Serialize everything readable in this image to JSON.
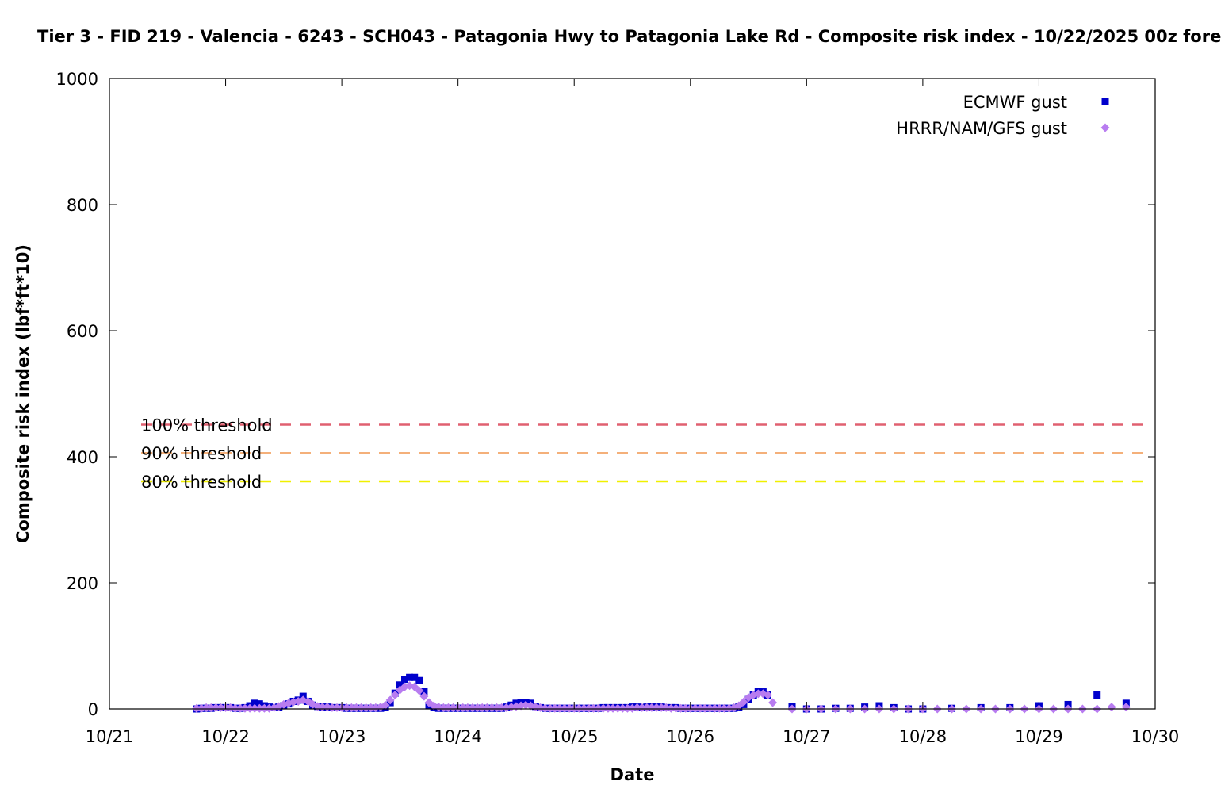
{
  "chart_data": {
    "type": "scatter",
    "title": "Tier 3 - FID 219 - Valencia - 6243 - SCH043 - Patagonia Hwy to Patagonia Lake Rd - Composite risk index - 10/22/2025 00z fore",
    "xlabel": "Date",
    "ylabel": "Composite risk index (lbf*ft*10)",
    "xlim": [
      "10/21",
      "10/30"
    ],
    "ylim": [
      0,
      1000
    ],
    "x_ticks": [
      "10/21",
      "10/22",
      "10/23",
      "10/24",
      "10/25",
      "10/26",
      "10/27",
      "10/28",
      "10/29",
      "10/30"
    ],
    "y_ticks": [
      "0",
      "200",
      "400",
      "600",
      "800",
      "1000"
    ],
    "legend_position": "top-right",
    "grid": false,
    "thresholds": [
      {
        "label": "100% threshold",
        "value": 451,
        "color": "#e06070"
      },
      {
        "label": "90% threshold",
        "value": 406,
        "color": "#f4b07a"
      },
      {
        "label": "80% threshold",
        "value": 361,
        "color": "#f0f000"
      }
    ],
    "series": [
      {
        "name": "ECMWF gust",
        "color": "#0000cc",
        "marker": "square",
        "points": [
          [
            "10/21 18z",
            0
          ],
          [
            "10/21 19z",
            1
          ],
          [
            "10/21 20z",
            1
          ],
          [
            "10/21 21z",
            1
          ],
          [
            "10/21 22z",
            2
          ],
          [
            "10/21 23z",
            2
          ],
          [
            "10/22 00z",
            2
          ],
          [
            "10/22 01z",
            2
          ],
          [
            "10/22 02z",
            1
          ],
          [
            "10/22 03z",
            1
          ],
          [
            "10/22 04z",
            2
          ],
          [
            "10/22 05z",
            5
          ],
          [
            "10/22 06z",
            9
          ],
          [
            "10/22 07z",
            8
          ],
          [
            "10/22 08z",
            5
          ],
          [
            "10/22 09z",
            3
          ],
          [
            "10/22 10z",
            2
          ],
          [
            "10/22 11z",
            3
          ],
          [
            "10/22 12z",
            5
          ],
          [
            "10/22 13z",
            8
          ],
          [
            "10/22 14z",
            12
          ],
          [
            "10/22 15z",
            14
          ],
          [
            "10/22 16z",
            20
          ],
          [
            "10/22 17z",
            12
          ],
          [
            "10/22 18z",
            6
          ],
          [
            "10/22 19z",
            4
          ],
          [
            "10/22 20z",
            3
          ],
          [
            "10/22 21z",
            3
          ],
          [
            "10/22 22z",
            2
          ],
          [
            "10/22 23z",
            2
          ],
          [
            "10/23 00z",
            2
          ],
          [
            "10/23 01z",
            1
          ],
          [
            "10/23 02z",
            1
          ],
          [
            "10/23 03z",
            1
          ],
          [
            "10/23 04z",
            1
          ],
          [
            "10/23 05z",
            1
          ],
          [
            "10/23 06z",
            1
          ],
          [
            "10/23 07z",
            1
          ],
          [
            "10/23 08z",
            1
          ],
          [
            "10/23 09z",
            2
          ],
          [
            "10/23 10z",
            10
          ],
          [
            "10/23 11z",
            25
          ],
          [
            "10/23 12z",
            38
          ],
          [
            "10/23 13z",
            47
          ],
          [
            "10/23 14z",
            50
          ],
          [
            "10/23 15z",
            50
          ],
          [
            "10/23 16z",
            45
          ],
          [
            "10/23 17z",
            28
          ],
          [
            "10/23 18z",
            5
          ],
          [
            "10/23 19z",
            2
          ],
          [
            "10/23 20z",
            1
          ],
          [
            "10/23 21z",
            1
          ],
          [
            "10/23 22z",
            1
          ],
          [
            "10/23 23z",
            1
          ],
          [
            "10/24 00z",
            1
          ],
          [
            "10/24 01z",
            1
          ],
          [
            "10/24 02z",
            1
          ],
          [
            "10/24 03z",
            1
          ],
          [
            "10/24 04z",
            1
          ],
          [
            "10/24 05z",
            1
          ],
          [
            "10/24 06z",
            1
          ],
          [
            "10/24 07z",
            1
          ],
          [
            "10/24 08z",
            1
          ],
          [
            "10/24 09z",
            1
          ],
          [
            "10/24 10z",
            3
          ],
          [
            "10/24 11z",
            6
          ],
          [
            "10/24 12z",
            9
          ],
          [
            "10/24 13z",
            10
          ],
          [
            "10/24 14z",
            10
          ],
          [
            "10/24 15z",
            9
          ],
          [
            "10/24 16z",
            4
          ],
          [
            "10/24 17z",
            2
          ],
          [
            "10/24 18z",
            1
          ],
          [
            "10/24 19z",
            1
          ],
          [
            "10/24 20z",
            1
          ],
          [
            "10/24 21z",
            1
          ],
          [
            "10/24 22z",
            1
          ],
          [
            "10/24 23z",
            1
          ],
          [
            "10/25 00z",
            1
          ],
          [
            "10/25 01z",
            1
          ],
          [
            "10/25 02z",
            1
          ],
          [
            "10/25 03z",
            1
          ],
          [
            "10/25 04z",
            1
          ],
          [
            "10/25 05z",
            1
          ],
          [
            "10/25 06z",
            2
          ],
          [
            "10/25 07z",
            2
          ],
          [
            "10/25 08z",
            2
          ],
          [
            "10/25 09z",
            2
          ],
          [
            "10/25 10z",
            2
          ],
          [
            "10/25 11z",
            2
          ],
          [
            "10/25 12z",
            3
          ],
          [
            "10/25 13z",
            3
          ],
          [
            "10/25 14z",
            2
          ],
          [
            "10/25 15z",
            3
          ],
          [
            "10/25 16z",
            4
          ],
          [
            "10/25 17z",
            3
          ],
          [
            "10/25 18z",
            3
          ],
          [
            "10/25 19z",
            2
          ],
          [
            "10/25 20z",
            2
          ],
          [
            "10/25 21z",
            2
          ],
          [
            "10/25 22z",
            1
          ],
          [
            "10/25 23z",
            1
          ],
          [
            "10/26 00z",
            1
          ],
          [
            "10/26 01z",
            1
          ],
          [
            "10/26 02z",
            1
          ],
          [
            "10/26 03z",
            1
          ],
          [
            "10/26 04z",
            1
          ],
          [
            "10/26 05z",
            1
          ],
          [
            "10/26 06z",
            1
          ],
          [
            "10/26 07z",
            1
          ],
          [
            "10/26 08z",
            1
          ],
          [
            "10/26 09z",
            1
          ],
          [
            "10/26 10z",
            3
          ],
          [
            "10/26 11z",
            7
          ],
          [
            "10/26 12z",
            15
          ],
          [
            "10/26 13z",
            22
          ],
          [
            "10/26 14z",
            28
          ],
          [
            "10/26 15z",
            27
          ],
          [
            "10/26 16z",
            22
          ],
          [
            "10/26 21z",
            4
          ],
          [
            "10/27 00z",
            0
          ],
          [
            "10/27 03z",
            0
          ],
          [
            "10/27 06z",
            1
          ],
          [
            "10/27 09z",
            1
          ],
          [
            "10/27 12z",
            3
          ],
          [
            "10/27 15z",
            5
          ],
          [
            "10/27 18z",
            2
          ],
          [
            "10/27 21z",
            0
          ],
          [
            "10/28 00z",
            0
          ],
          [
            "10/28 06z",
            1
          ],
          [
            "10/28 12z",
            2
          ],
          [
            "10/28 18z",
            2
          ],
          [
            "10/29 00z",
            5
          ],
          [
            "10/29 06z",
            7
          ],
          [
            "10/29 12z",
            22
          ],
          [
            "10/29 18z",
            9
          ]
        ]
      },
      {
        "name": "HRRR/NAM/GFS gust",
        "color": "#b87cf0",
        "marker": "diamond",
        "points": [
          [
            "10/21 18z",
            1
          ],
          [
            "10/21 19z",
            1
          ],
          [
            "10/21 20z",
            2
          ],
          [
            "10/21 21z",
            2
          ],
          [
            "10/21 22z",
            2
          ],
          [
            "10/21 23z",
            2
          ],
          [
            "10/22 00z",
            2
          ],
          [
            "10/22 01z",
            2
          ],
          [
            "10/22 02z",
            1
          ],
          [
            "10/22 03z",
            1
          ],
          [
            "10/22 04z",
            1
          ],
          [
            "10/22 05z",
            1
          ],
          [
            "10/22 06z",
            1
          ],
          [
            "10/22 07z",
            1
          ],
          [
            "10/22 08z",
            1
          ],
          [
            "10/22 09z",
            1
          ],
          [
            "10/22 10z",
            2
          ],
          [
            "10/22 11z",
            4
          ],
          [
            "10/22 12z",
            7
          ],
          [
            "10/22 13z",
            9
          ],
          [
            "10/22 14z",
            11
          ],
          [
            "10/22 15z",
            12
          ],
          [
            "10/22 16z",
            14
          ],
          [
            "10/22 17z",
            12
          ],
          [
            "10/22 18z",
            7
          ],
          [
            "10/22 19z",
            4
          ],
          [
            "10/22 20z",
            3
          ],
          [
            "10/22 21z",
            3
          ],
          [
            "10/22 22z",
            2
          ],
          [
            "10/22 23z",
            2
          ],
          [
            "10/23 00z",
            2
          ],
          [
            "10/23 01z",
            2
          ],
          [
            "10/23 02z",
            2
          ],
          [
            "10/23 03z",
            2
          ],
          [
            "10/23 04z",
            2
          ],
          [
            "10/23 05z",
            2
          ],
          [
            "10/23 06z",
            2
          ],
          [
            "10/23 07z",
            2
          ],
          [
            "10/23 08z",
            3
          ],
          [
            "10/23 09z",
            6
          ],
          [
            "10/23 10z",
            14
          ],
          [
            "10/23 11z",
            22
          ],
          [
            "10/23 12z",
            30
          ],
          [
            "10/23 13z",
            35
          ],
          [
            "10/23 14z",
            37
          ],
          [
            "10/23 15z",
            35
          ],
          [
            "10/23 16z",
            29
          ],
          [
            "10/23 17z",
            20
          ],
          [
            "10/23 18z",
            10
          ],
          [
            "10/23 19z",
            5
          ],
          [
            "10/23 20z",
            3
          ],
          [
            "10/23 21z",
            2
          ],
          [
            "10/23 22z",
            2
          ],
          [
            "10/23 23z",
            2
          ],
          [
            "10/24 00z",
            2
          ],
          [
            "10/24 01z",
            2
          ],
          [
            "10/24 02z",
            2
          ],
          [
            "10/24 03z",
            2
          ],
          [
            "10/24 04z",
            2
          ],
          [
            "10/24 05z",
            2
          ],
          [
            "10/24 06z",
            2
          ],
          [
            "10/24 07z",
            2
          ],
          [
            "10/24 08z",
            2
          ],
          [
            "10/24 09z",
            2
          ],
          [
            "10/24 10z",
            2
          ],
          [
            "10/24 11z",
            3
          ],
          [
            "10/24 12z",
            4
          ],
          [
            "10/24 13z",
            5
          ],
          [
            "10/24 14z",
            6
          ],
          [
            "10/24 15z",
            5
          ],
          [
            "10/24 16z",
            3
          ],
          [
            "10/24 17z",
            2
          ],
          [
            "10/24 18z",
            1
          ],
          [
            "10/24 19z",
            1
          ],
          [
            "10/24 20z",
            1
          ],
          [
            "10/24 21z",
            1
          ],
          [
            "10/24 22z",
            1
          ],
          [
            "10/24 23z",
            1
          ],
          [
            "10/25 00z",
            1
          ],
          [
            "10/25 01z",
            1
          ],
          [
            "10/25 02z",
            1
          ],
          [
            "10/25 03z",
            1
          ],
          [
            "10/25 04z",
            1
          ],
          [
            "10/25 05z",
            1
          ],
          [
            "10/25 06z",
            1
          ],
          [
            "10/25 07z",
            1
          ],
          [
            "10/25 08z",
            1
          ],
          [
            "10/25 09z",
            1
          ],
          [
            "10/25 10z",
            1
          ],
          [
            "10/25 11z",
            1
          ],
          [
            "10/25 12z",
            1
          ],
          [
            "10/25 13z",
            2
          ],
          [
            "10/25 14z",
            2
          ],
          [
            "10/25 15z",
            2
          ],
          [
            "10/25 16z",
            2
          ],
          [
            "10/25 17z",
            2
          ],
          [
            "10/25 18z",
            2
          ],
          [
            "10/25 19z",
            2
          ],
          [
            "10/25 20z",
            1
          ],
          [
            "10/25 21z",
            1
          ],
          [
            "10/25 22z",
            1
          ],
          [
            "10/25 23z",
            1
          ],
          [
            "10/26 00z",
            1
          ],
          [
            "10/26 01z",
            1
          ],
          [
            "10/26 02z",
            1
          ],
          [
            "10/26 03z",
            1
          ],
          [
            "10/26 04z",
            1
          ],
          [
            "10/26 05z",
            1
          ],
          [
            "10/26 06z",
            1
          ],
          [
            "10/26 07z",
            1
          ],
          [
            "10/26 08z",
            1
          ],
          [
            "10/26 09z",
            2
          ],
          [
            "10/26 10z",
            5
          ],
          [
            "10/26 11z",
            11
          ],
          [
            "10/26 12z",
            18
          ],
          [
            "10/26 13z",
            22
          ],
          [
            "10/26 14z",
            24
          ],
          [
            "10/26 15z",
            24
          ],
          [
            "10/26 16z",
            22
          ],
          [
            "10/26 17z",
            10
          ],
          [
            "10/26 21z",
            0
          ],
          [
            "10/27 00z",
            0
          ],
          [
            "10/27 03z",
            0
          ],
          [
            "10/27 06z",
            0
          ],
          [
            "10/27 09z",
            0
          ],
          [
            "10/27 12z",
            0
          ],
          [
            "10/27 15z",
            0
          ],
          [
            "10/27 18z",
            0
          ],
          [
            "10/27 21z",
            0
          ],
          [
            "10/28 00z",
            0
          ],
          [
            "10/28 03z",
            0
          ],
          [
            "10/28 06z",
            0
          ],
          [
            "10/28 09z",
            0
          ],
          [
            "10/28 12z",
            0
          ],
          [
            "10/28 15z",
            0
          ],
          [
            "10/28 18z",
            0
          ],
          [
            "10/28 21z",
            0
          ],
          [
            "10/29 00z",
            0
          ],
          [
            "10/29 03z",
            0
          ],
          [
            "10/29 06z",
            0
          ],
          [
            "10/29 09z",
            0
          ],
          [
            "10/29 12z",
            0
          ],
          [
            "10/29 15z",
            3
          ],
          [
            "10/29 18z",
            3
          ]
        ]
      }
    ]
  }
}
